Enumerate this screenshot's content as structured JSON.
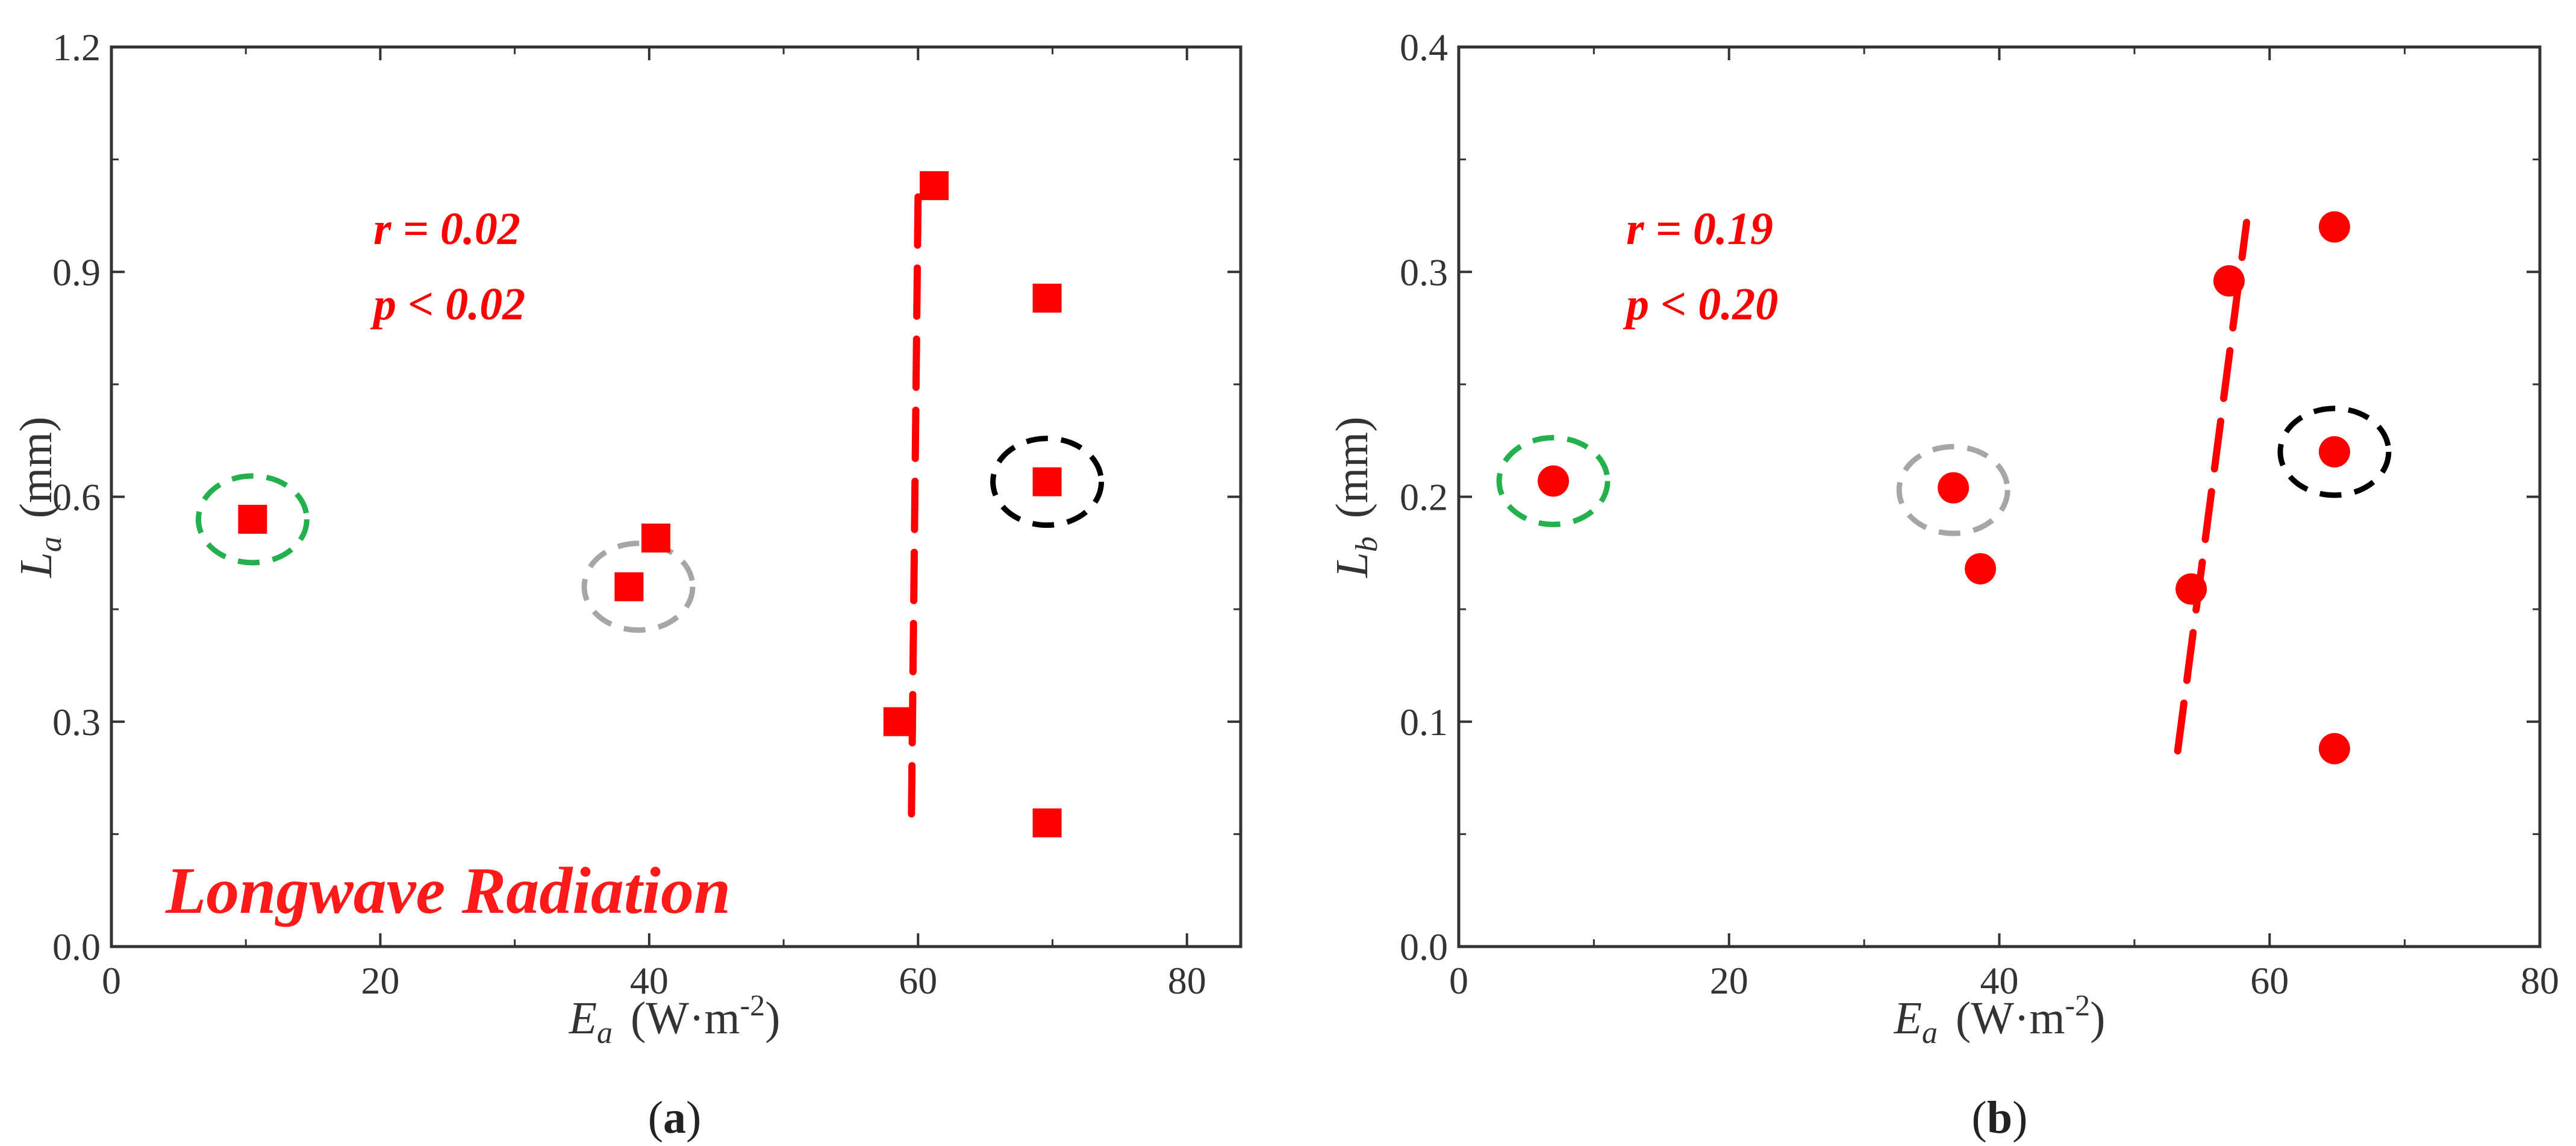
{
  "chart_data": [
    {
      "type": "scatter",
      "panel_label": "a",
      "xlabel": {
        "symbol": "E",
        "sub": "a",
        "unit_open": "(W·m",
        "unit_sup": "-2",
        "unit_close": ")"
      },
      "ylabel": {
        "symbol": "L",
        "sub": "a",
        "unit": "(mm)"
      },
      "xlim": [
        0,
        84
      ],
      "ylim": [
        0,
        1.2
      ],
      "xticks": [
        0,
        20,
        40,
        60,
        80
      ],
      "yticks": [
        0.0,
        0.3,
        0.6,
        0.9,
        1.2
      ],
      "ytick_labels": [
        "0.0",
        "0.3",
        "0.6",
        "0.9",
        "1.2"
      ],
      "marker": "square",
      "color": "#ff0000",
      "points": [
        {
          "x": 10.5,
          "y": 0.57
        },
        {
          "x": 38.5,
          "y": 0.48
        },
        {
          "x": 40.5,
          "y": 0.545
        },
        {
          "x": 58.5,
          "y": 0.3
        },
        {
          "x": 61.2,
          "y": 1.015
        },
        {
          "x": 69.6,
          "y": 0.865
        },
        {
          "x": 69.6,
          "y": 0.62
        },
        {
          "x": 69.6,
          "y": 0.165
        }
      ],
      "fit_line": {
        "x1": 60.0,
        "y1": 1.0,
        "x2": 59.5,
        "y2": 0.16,
        "style": "dashed",
        "color": "#ff0000"
      },
      "highlights": [
        {
          "x": 10.5,
          "y": 0.57,
          "color": "#22b14c"
        },
        {
          "x": 39.2,
          "y": 0.48,
          "color": "#a6a6a6"
        },
        {
          "x": 69.6,
          "y": 0.62,
          "color": "#000000"
        }
      ],
      "annotations": {
        "r": "r  =  0.02",
        "p": "p <  0.02",
        "label": "Longwave Radiation"
      }
    },
    {
      "type": "scatter",
      "panel_label": "b",
      "xlabel": {
        "symbol": "E",
        "sub": "a",
        "unit_open": "(W·m",
        "unit_sup": "-2",
        "unit_close": ")"
      },
      "ylabel": {
        "symbol": "L",
        "sub": "b",
        "unit": "(mm)"
      },
      "xlim": [
        0,
        80
      ],
      "ylim": [
        0,
        0.4
      ],
      "xticks": [
        0,
        20,
        40,
        60,
        80
      ],
      "yticks": [
        0.0,
        0.1,
        0.2,
        0.3,
        0.4
      ],
      "ytick_labels": [
        "0.0",
        "0.1",
        "0.2",
        "0.3",
        "0.4"
      ],
      "marker": "circle",
      "color": "#ff0000",
      "points": [
        {
          "x": 7.0,
          "y": 0.207
        },
        {
          "x": 36.6,
          "y": 0.204
        },
        {
          "x": 38.6,
          "y": 0.168
        },
        {
          "x": 54.2,
          "y": 0.159
        },
        {
          "x": 57.0,
          "y": 0.296
        },
        {
          "x": 64.8,
          "y": 0.32
        },
        {
          "x": 64.8,
          "y": 0.22
        },
        {
          "x": 64.8,
          "y": 0.088
        }
      ],
      "fit_line": {
        "x1": 53.2,
        "y1": 0.087,
        "x2": 58.3,
        "y2": 0.322,
        "style": "dashed",
        "color": "#ff0000"
      },
      "highlights": [
        {
          "x": 7.0,
          "y": 0.207,
          "color": "#22b14c"
        },
        {
          "x": 36.6,
          "y": 0.203,
          "color": "#a6a6a6"
        },
        {
          "x": 64.8,
          "y": 0.22,
          "color": "#000000"
        }
      ],
      "annotations": {
        "r": "r  =  0.19",
        "p": "p <  0.20"
      }
    }
  ]
}
